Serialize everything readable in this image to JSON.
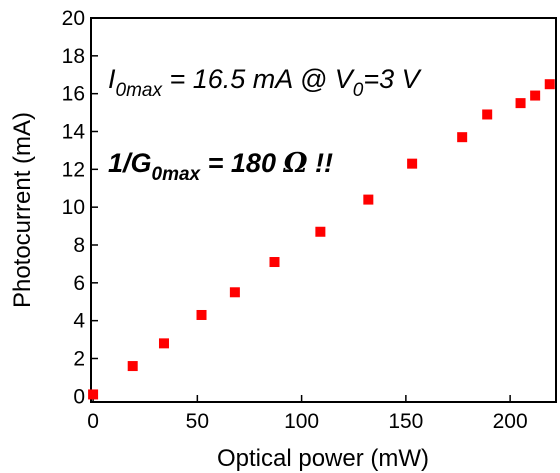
{
  "chart_data": {
    "type": "scatter",
    "xlabel": "Optical power (mW)",
    "ylabel": "Photocurrent (mA)",
    "xlim": [
      -1,
      222
    ],
    "ylim": [
      -0.3,
      20
    ],
    "xticks": [
      0,
      50,
      100,
      150,
      200
    ],
    "yticks": [
      0,
      2,
      4,
      6,
      8,
      10,
      12,
      14,
      16,
      18,
      20
    ],
    "grid": false,
    "marker_color": "#ff0000",
    "series": [
      {
        "x": [
          0,
          19,
          34,
          52,
          68,
          87,
          109,
          132,
          153,
          177,
          189,
          205,
          212,
          219
        ],
        "y": [
          0.1,
          1.6,
          2.8,
          4.3,
          5.5,
          7.1,
          8.7,
          10.4,
          12.3,
          13.7,
          14.9,
          15.5,
          15.9,
          16.5
        ]
      }
    ],
    "annotations": [
      {
        "id": "imax",
        "parts": {
          "i_symbol": "I",
          "i_sub": "0max",
          "i_eq": " = 16.5 mA  @ V",
          "v_sub": "0",
          "v_eq": "=3 V"
        }
      },
      {
        "id": "gmax",
        "parts": {
          "g_prefix": "1/G",
          "g_sub": "0max",
          "g_eq": " = 180 ",
          "omega": "Ω",
          "g_suffix": " !!"
        }
      }
    ]
  }
}
